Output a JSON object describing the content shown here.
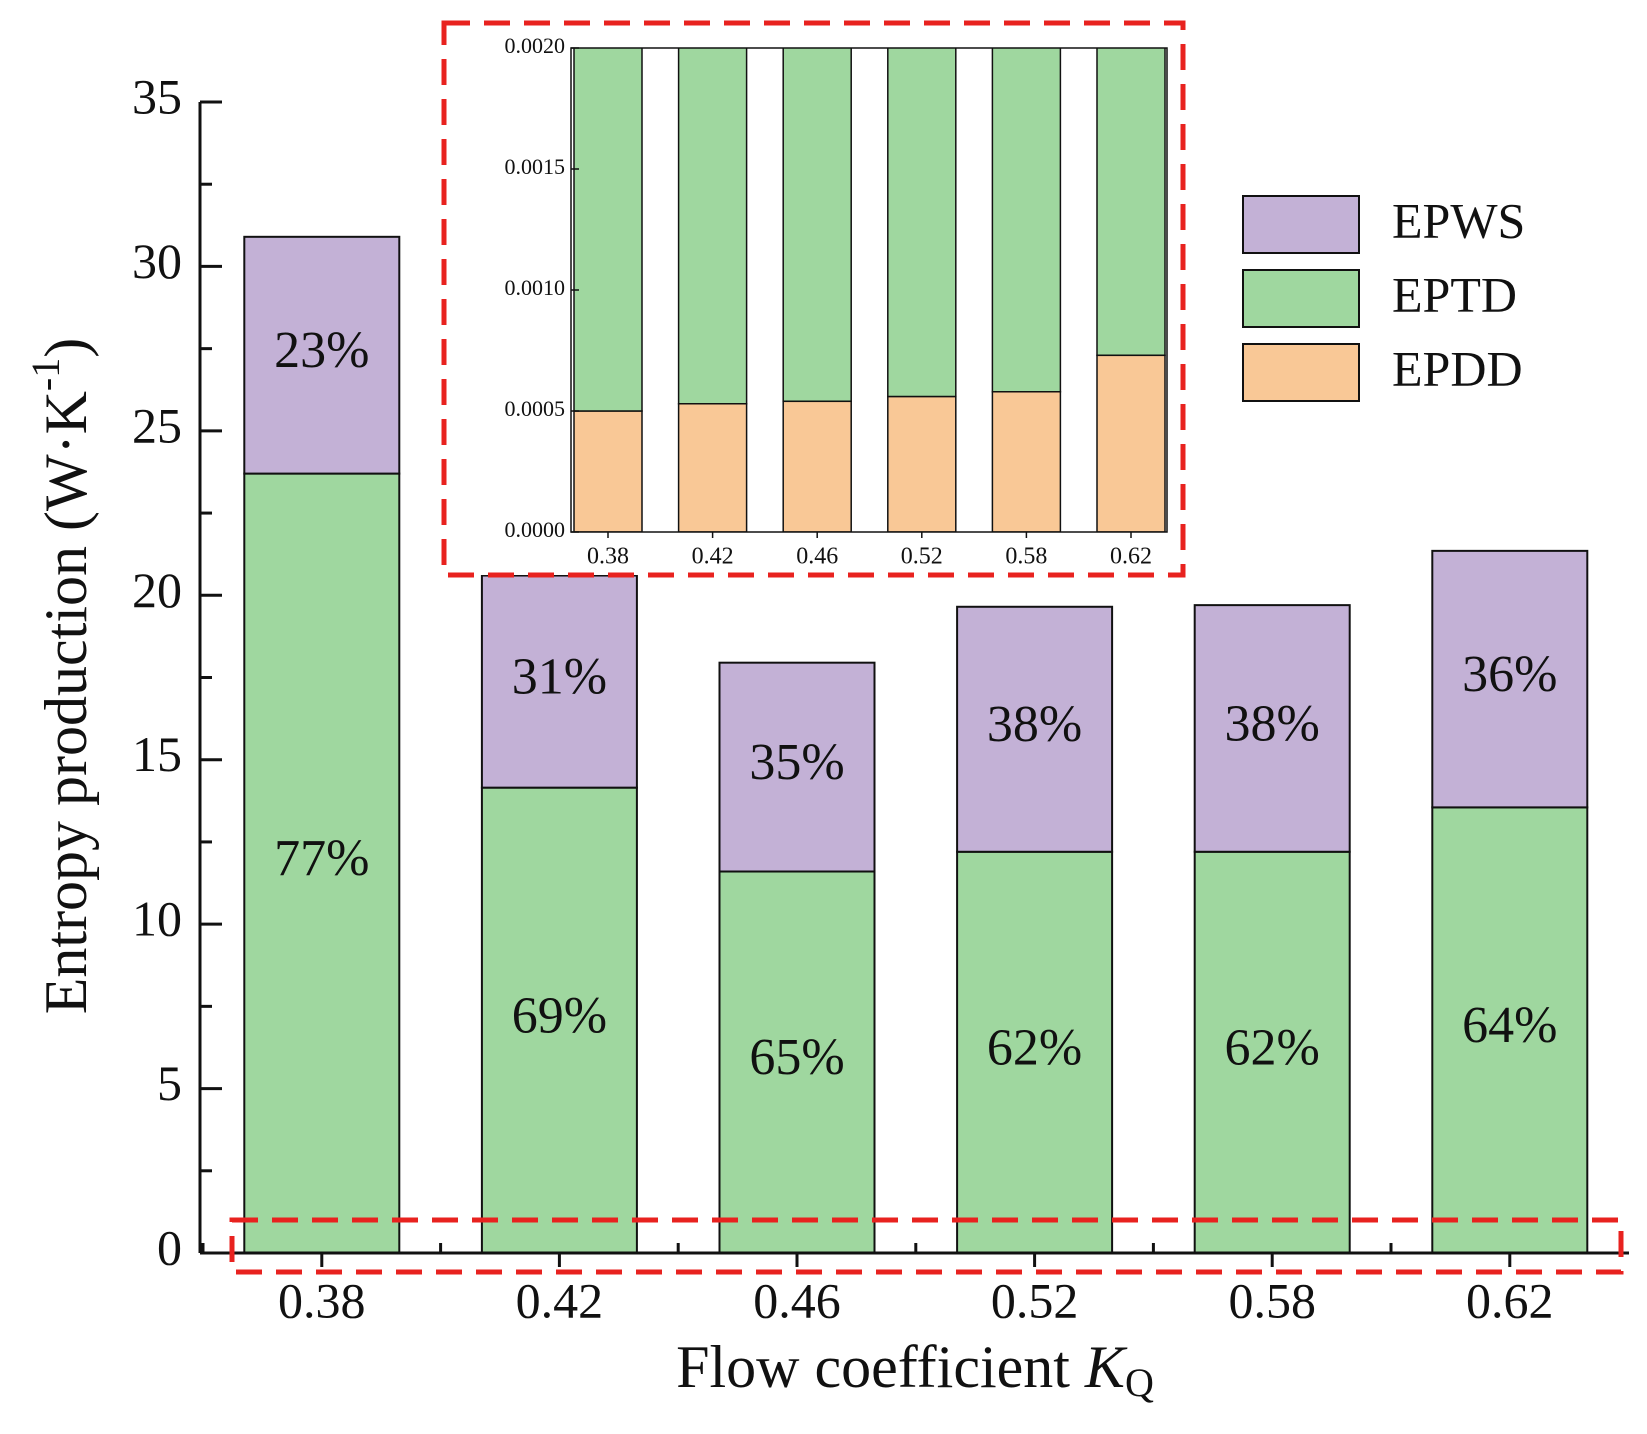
{
  "chart_data": [
    {
      "type": "stacked_bar",
      "xlabel": {
        "text": "Flow coefficient ",
        "var": "K",
        "sub": "Q"
      },
      "ylabel": {
        "text": "Entropy production (W·K",
        "sup": "-1",
        "end": ")"
      },
      "categories": [
        "0.38",
        "0.42",
        "0.46",
        "0.52",
        "0.58",
        "0.62"
      ],
      "series": [
        {
          "name": "EPDD",
          "color": "#f9c896",
          "values": [
            0.0005,
            0.00053,
            0.00054,
            0.00056,
            0.00058,
            0.00073
          ]
        },
        {
          "name": "EPTD",
          "color": "#9fd79f",
          "values": [
            23.7,
            14.15,
            11.6,
            12.2,
            12.2,
            13.55
          ],
          "labels": [
            "77%",
            "69%",
            "65%",
            "62%",
            "62%",
            "64%"
          ]
        },
        {
          "name": "EPWS",
          "color": "#c3b1d6",
          "values": [
            7.2,
            6.45,
            6.35,
            7.45,
            7.5,
            7.8
          ],
          "labels": [
            "23%",
            "31%",
            "35%",
            "38%",
            "38%",
            "36%"
          ]
        }
      ],
      "ylim": [
        0,
        35
      ],
      "yticks": [
        0,
        5,
        10,
        15,
        20,
        25,
        30,
        35
      ]
    },
    {
      "type": "inset_bar",
      "categories": [
        "0.38",
        "0.42",
        "0.46",
        "0.52",
        "0.58",
        "0.62"
      ],
      "ylim": [
        0,
        0.002
      ],
      "yticks": [
        {
          "value": 0,
          "label": "0.0000"
        },
        {
          "value": 0.0005,
          "label": "0.0005"
        },
        {
          "value": 0.001,
          "label": "0.0010"
        },
        {
          "value": 0.0015,
          "label": "0.0015"
        },
        {
          "value": 0.002,
          "label": "0.0020"
        }
      ]
    }
  ]
}
